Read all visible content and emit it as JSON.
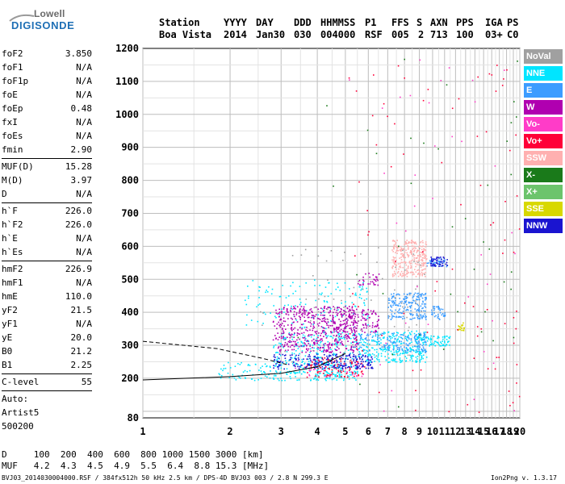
{
  "logo": {
    "top": "Lowell",
    "bottom": "DIGISONDE"
  },
  "header": {
    "row1": [
      "Station",
      "YYYY",
      "DAY",
      "DDD",
      "HHMMSS",
      "P1",
      "FFS",
      "S",
      "AXN",
      "PPS",
      "IGA",
      "PS"
    ],
    "row2": [
      "Boa Vista",
      "2014",
      "Jan30",
      "030",
      "004000",
      "RSF",
      "005",
      "2",
      "713",
      "100",
      "03+",
      "C0"
    ]
  },
  "params": [
    [
      {
        "k": "foF2",
        "v": "3.850"
      },
      {
        "k": "foF1",
        "v": "N/A"
      },
      {
        "k": "foF1p",
        "v": "N/A"
      },
      {
        "k": "foE",
        "v": "N/A"
      },
      {
        "k": "foEp",
        "v": "0.48"
      },
      {
        "k": "fxI",
        "v": "N/A"
      },
      {
        "k": "foEs",
        "v": "N/A"
      },
      {
        "k": "fmin",
        "v": "2.90"
      }
    ],
    [
      {
        "k": "MUF(D)",
        "v": "15.28"
      },
      {
        "k": "M(D)",
        "v": "3.97"
      },
      {
        "k": "D",
        "v": "N/A"
      }
    ],
    [
      {
        "k": "h`F",
        "v": "226.0"
      },
      {
        "k": "h`F2",
        "v": "226.0"
      },
      {
        "k": "h`E",
        "v": "N/A"
      },
      {
        "k": "h`Es",
        "v": "N/A"
      }
    ],
    [
      {
        "k": "hmF2",
        "v": "226.9"
      },
      {
        "k": "hmF1",
        "v": "N/A"
      },
      {
        "k": "hmE",
        "v": "110.0"
      },
      {
        "k": "yF2",
        "v": "21.5"
      },
      {
        "k": "yF1",
        "v": "N/A"
      },
      {
        "k": "yE",
        "v": "20.0"
      },
      {
        "k": "B0",
        "v": "21.2"
      },
      {
        "k": "B1",
        "v": "2.25"
      }
    ],
    [
      {
        "k": "C-level",
        "v": "55"
      }
    ]
  ],
  "auto": [
    "Auto:",
    "Artist5",
    "500200"
  ],
  "legend": [
    {
      "label": "NoVal",
      "color": "#a0a0a0"
    },
    {
      "label": "NNE",
      "color": "#00e5ff"
    },
    {
      "label": "E",
      "color": "#3c9cff"
    },
    {
      "label": "W",
      "color": "#b000b0"
    },
    {
      "label": "Vo-",
      "color": "#ff3cc8"
    },
    {
      "label": "Vo+",
      "color": "#ff0038"
    },
    {
      "label": "SSW",
      "color": "#ffb0b0"
    },
    {
      "label": "X-",
      "color": "#1a7a1a"
    },
    {
      "label": "X+",
      "color": "#6cc46c"
    },
    {
      "label": "SSE",
      "color": "#d8d800"
    },
    {
      "label": "NNW",
      "color": "#1a14d0"
    }
  ],
  "footer": {
    "d_line": "D     100  200  400  600  800 1000 1500 3000 [km]",
    "muf_line": "MUF   4.2  4.3  4.5  4.9  5.5  6.4  8.8 15.3 [MHz]",
    "file_line": "BVJ03_2014030004000.RSF / 384fx512h 50 kHz 2.5 km / DPS-4D BVJ03 003 / 2.8 N 299.3 E",
    "version": "Ion2Png v. 1.3.17"
  },
  "chart_data": {
    "type": "scatter",
    "x_ticks": [
      "1",
      "2",
      "3",
      "4",
      "5",
      "6",
      "7",
      "8",
      "9",
      "10",
      "11",
      "12",
      "13",
      "14",
      "15",
      "16",
      "17",
      "18",
      "19",
      "20"
    ],
    "y_ticks": [
      "80",
      "200",
      "300",
      "400",
      "500",
      "600",
      "700",
      "800",
      "900",
      "1000",
      "1100",
      "1200"
    ],
    "xlim": [
      1,
      20
    ],
    "ylim": [
      80,
      1200
    ],
    "grid": true,
    "scaled_ticks": "log frequency axis; height ticks in km",
    "clusters": [
      {
        "series": "NNE",
        "fmin": 1.8,
        "fmax": 5.5,
        "hmin": 195,
        "hmax": 250,
        "n": 260
      },
      {
        "series": "NNE",
        "fmin": 2.8,
        "fmax": 9.5,
        "hmin": 250,
        "hmax": 345,
        "n": 520
      },
      {
        "series": "NNE",
        "fmin": 9.5,
        "fmax": 11.5,
        "hmin": 300,
        "hmax": 330,
        "n": 60
      },
      {
        "series": "NNE",
        "fmin": 2.2,
        "fmax": 6.0,
        "hmin": 350,
        "hmax": 500,
        "n": 140
      },
      {
        "series": "E",
        "fmin": 7.0,
        "fmax": 9.5,
        "hmin": 380,
        "hmax": 460,
        "n": 200
      },
      {
        "series": "E",
        "fmin": 9.8,
        "fmax": 11.0,
        "hmin": 380,
        "hmax": 420,
        "n": 40
      },
      {
        "series": "E",
        "fmin": 5.5,
        "fmax": 9.5,
        "hmin": 280,
        "hmax": 340,
        "n": 160
      },
      {
        "series": "E",
        "fmin": 9.5,
        "fmax": 11.2,
        "hmin": 540,
        "hmax": 565,
        "n": 40
      },
      {
        "series": "W",
        "fmin": 2.8,
        "fmax": 5.5,
        "hmin": 280,
        "hmax": 420,
        "n": 520
      },
      {
        "series": "W",
        "fmin": 4.5,
        "fmax": 6.5,
        "hmin": 340,
        "hmax": 410,
        "n": 120
      },
      {
        "series": "W",
        "fmin": 5.5,
        "fmax": 6.5,
        "hmin": 480,
        "hmax": 520,
        "n": 30
      },
      {
        "series": "Vo-",
        "fmin": 3.3,
        "fmax": 5.8,
        "hmin": 205,
        "hmax": 260,
        "n": 40
      },
      {
        "series": "Vo+",
        "fmin": 3.6,
        "fmax": 5.8,
        "hmin": 205,
        "hmax": 265,
        "n": 100
      },
      {
        "series": "SSW",
        "fmin": 7.2,
        "fmax": 9.5,
        "hmin": 510,
        "hmax": 620,
        "n": 300
      },
      {
        "series": "NNW",
        "fmin": 2.8,
        "fmax": 6.2,
        "hmin": 230,
        "hmax": 275,
        "n": 220
      },
      {
        "series": "NNW",
        "fmin": 9.8,
        "fmax": 11.2,
        "hmin": 540,
        "hmax": 570,
        "n": 50
      },
      {
        "series": "SSE",
        "fmin": 12.2,
        "fmax": 12.8,
        "hmin": 340,
        "hmax": 370,
        "n": 20
      },
      {
        "series": "NoVal",
        "fmin": 2.5,
        "fmax": 9.5,
        "hmin": 250,
        "hmax": 600,
        "n": 80
      },
      {
        "series": "X-",
        "fmin": 1.8,
        "fmax": 20,
        "hmin": 90,
        "hmax": 1180,
        "n": 40
      },
      {
        "series": "Vo+",
        "fmin": 5,
        "fmax": 20,
        "hmin": 90,
        "hmax": 1180,
        "n": 90
      },
      {
        "series": "Vo-",
        "fmin": 5,
        "fmax": 20,
        "hmin": 90,
        "hmax": 1180,
        "n": 40
      }
    ],
    "traces": [
      {
        "name": "O-trace",
        "points": [
          [
            1,
            195
          ],
          [
            2,
            205
          ],
          [
            3,
            215
          ],
          [
            4,
            235
          ],
          [
            5,
            275
          ]
        ]
      },
      {
        "name": "dashed-trace",
        "dashed": true,
        "points": [
          [
            1,
            312
          ],
          [
            1.8,
            290
          ],
          [
            2.6,
            260
          ],
          [
            3.2,
            240
          ]
        ]
      }
    ]
  }
}
